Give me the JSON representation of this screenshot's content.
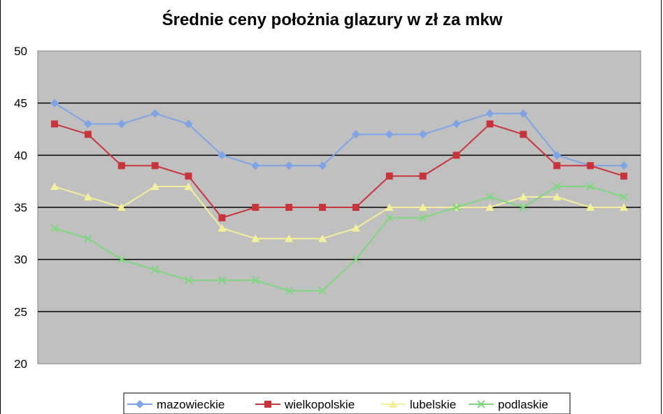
{
  "chart_data": {
    "type": "line",
    "title": "Średnie ceny położnia glazury w zł za mkw",
    "xlabel": "",
    "ylabel": "",
    "ylim": [
      20,
      50
    ],
    "yticks": [
      "50",
      "45",
      "40",
      "35",
      "30",
      "25",
      "20"
    ],
    "grid": true,
    "legend_position": "bottom",
    "plot_background": "#c0c0c0",
    "x": [
      1,
      2,
      3,
      4,
      5,
      6,
      7,
      8,
      9,
      10,
      11,
      12,
      13,
      14,
      15,
      16,
      17,
      18
    ],
    "series": [
      {
        "name": "mazowieckie",
        "color": "#7ea4e6",
        "marker": "diamond",
        "values": [
          45,
          43,
          43,
          44,
          43,
          40,
          39,
          39,
          39,
          42,
          42,
          42,
          43,
          44,
          44,
          40,
          39,
          39
        ]
      },
      {
        "name": "wielkopolskie",
        "color": "#c8343c",
        "marker": "square",
        "values": [
          43,
          42,
          39,
          39,
          38,
          34,
          35,
          35,
          35,
          35,
          38,
          38,
          40,
          43,
          42,
          39,
          39,
          38
        ]
      },
      {
        "name": "lubelskie",
        "color": "#f3ef9a",
        "marker": "triangle",
        "values": [
          37,
          36,
          35,
          37,
          37,
          33,
          32,
          32,
          32,
          33,
          35,
          35,
          35,
          35,
          36,
          36,
          35,
          35
        ]
      },
      {
        "name": "podlaskie",
        "color": "#7ed67e",
        "marker": "cross",
        "values": [
          33,
          32,
          30,
          29,
          28,
          28,
          28,
          27,
          27,
          30,
          34,
          34,
          35,
          36,
          35,
          37,
          37,
          36
        ]
      }
    ]
  }
}
